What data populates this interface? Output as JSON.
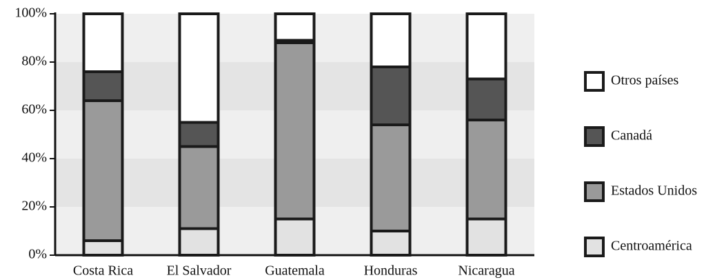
{
  "chart_data": {
    "type": "stacked_bar",
    "categories": [
      "Costa Rica",
      "El Salvador",
      "Guatemala",
      "Honduras",
      "Nicaragua"
    ],
    "series": [
      {
        "name": "Centroamérica",
        "color": "#e2e2e2",
        "values": [
          6,
          11,
          15,
          10,
          15
        ]
      },
      {
        "name": "Estados Unidos",
        "color": "#9a9a9a",
        "values": [
          58,
          34,
          73,
          44,
          41
        ]
      },
      {
        "name": "Canadá",
        "color": "#555555",
        "values": [
          12,
          10,
          1,
          24,
          17
        ]
      },
      {
        "name": "Otros países",
        "color": "#ffffff",
        "values": [
          24,
          45,
          11,
          22,
          27
        ]
      }
    ],
    "ylim": [
      0,
      100
    ],
    "yticks": [
      {
        "value": 0,
        "label": "0%"
      },
      {
        "value": 20,
        "label": "20%"
      },
      {
        "value": 40,
        "label": "40%"
      },
      {
        "value": 60,
        "label": "60%"
      },
      {
        "value": 80,
        "label": "80%"
      },
      {
        "value": 100,
        "label": "100%"
      }
    ],
    "legend": "right"
  }
}
